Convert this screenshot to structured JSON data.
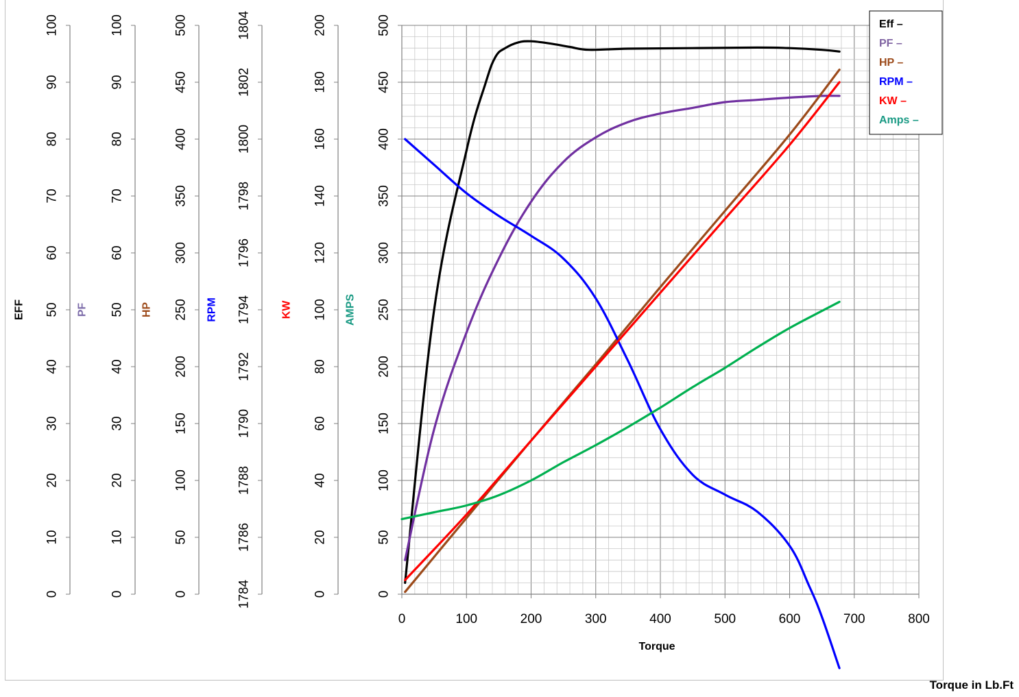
{
  "chart_data": {
    "type": "line",
    "title": "",
    "xlabel": "Torque",
    "xlim": [
      0,
      800
    ],
    "x_ticks": [
      0,
      100,
      200,
      300,
      400,
      500,
      600,
      700,
      800
    ],
    "grid": true,
    "legend_position": "top-right",
    "axes": [
      {
        "key": "eff",
        "label": "EFF",
        "color": "#000000",
        "range": [
          0,
          100
        ],
        "ticks": [
          0,
          10,
          20,
          30,
          40,
          50,
          60,
          70,
          80,
          90,
          100
        ]
      },
      {
        "key": "pf",
        "label": "PF",
        "color": "#7b6aa8",
        "range": [
          0,
          100
        ],
        "ticks": [
          0,
          10,
          20,
          30,
          40,
          50,
          60,
          70,
          80,
          90,
          100
        ]
      },
      {
        "key": "hp",
        "label": "HP",
        "color": "#9c4a1a",
        "range": [
          0,
          500
        ],
        "ticks": [
          0,
          50,
          100,
          150,
          200,
          250,
          300,
          350,
          400,
          450,
          500
        ]
      },
      {
        "key": "rpm",
        "label": "RPM",
        "color": "#0000ff",
        "range": [
          1784,
          1804
        ],
        "ticks": [
          1784,
          1786,
          1788,
          1790,
          1792,
          1794,
          1796,
          1798,
          1800,
          1802,
          1804
        ]
      },
      {
        "key": "kw",
        "label": "KW",
        "color": "#ff0000",
        "range": [
          0,
          200
        ],
        "ticks": [
          0,
          20,
          40,
          60,
          80,
          100,
          120,
          140,
          160,
          180,
          200
        ]
      },
      {
        "key": "amps",
        "label": "AMPS",
        "color": "#1a9a84",
        "range": [
          0,
          500
        ],
        "ticks": [
          0,
          50,
          100,
          150,
          200,
          250,
          300,
          350,
          400,
          450,
          500
        ]
      }
    ],
    "series": [
      {
        "name": "Eff",
        "axis": "eff",
        "color": "#000000",
        "legend_color": "#000000",
        "x": [
          5,
          50,
          100,
          130,
          145,
          160,
          180,
          200,
          230,
          260,
          290,
          350,
          450,
          550,
          600,
          650,
          677
        ],
        "y": [
          2,
          50,
          78,
          90,
          94.5,
          96,
          97,
          97.2,
          96.8,
          96.2,
          95.7,
          95.9,
          96,
          96.1,
          96,
          95.7,
          95.4
        ]
      },
      {
        "name": "PF",
        "axis": "pf",
        "color": "#7030a0",
        "legend_color": "#8064a2",
        "x": [
          5,
          50,
          100,
          150,
          200,
          250,
          300,
          350,
          400,
          450,
          500,
          550,
          600,
          650,
          677
        ],
        "y": [
          6,
          29,
          46,
          59,
          69,
          76,
          80.3,
          83,
          84.5,
          85.5,
          86.5,
          86.9,
          87.3,
          87.6,
          87.6
        ]
      },
      {
        "name": "HP",
        "axis": "hp",
        "color": "#9c4a1a",
        "legend_color": "#9c4a1a",
        "x": [
          5,
          100,
          200,
          300,
          400,
          500,
          600,
          677
        ],
        "y": [
          2,
          67,
          135,
          202,
          270,
          337,
          404,
          461
        ]
      },
      {
        "name": "RPM",
        "axis": "rpm",
        "color": "#0000ff",
        "legend_color": "#0000ff",
        "x": [
          5,
          50,
          100,
          150,
          200,
          250,
          300,
          350,
          400,
          450,
          500,
          550,
          600,
          630,
          650,
          677
        ],
        "y": [
          1800,
          1799.1,
          1798.1,
          1797.3,
          1796.6,
          1795.8,
          1794.4,
          1792.2,
          1789.8,
          1788.2,
          1787.5,
          1786.9,
          1785.7,
          1784.3,
          1783.2,
          1781.4
        ]
      },
      {
        "name": "KW",
        "axis": "kw",
        "color": "#ff0000",
        "legend_color": "#ff0000",
        "x": [
          5,
          100,
          200,
          300,
          400,
          500,
          600,
          677
        ],
        "y": [
          5,
          28,
          54,
          80,
          106,
          132,
          158,
          180
        ]
      },
      {
        "name": "Amps",
        "axis": "amps",
        "color": "#00b050",
        "legend_color": "#1a9a84",
        "x": [
          0,
          50,
          100,
          150,
          200,
          250,
          300,
          350,
          400,
          450,
          500,
          550,
          600,
          650,
          677
        ],
        "y": [
          66,
          72,
          78,
          87,
          100,
          116,
          131,
          147,
          164,
          182,
          199,
          217,
          234,
          249,
          257
        ]
      }
    ]
  },
  "footer_label": "Torque in Lb.Ft",
  "legend_marker": "–"
}
